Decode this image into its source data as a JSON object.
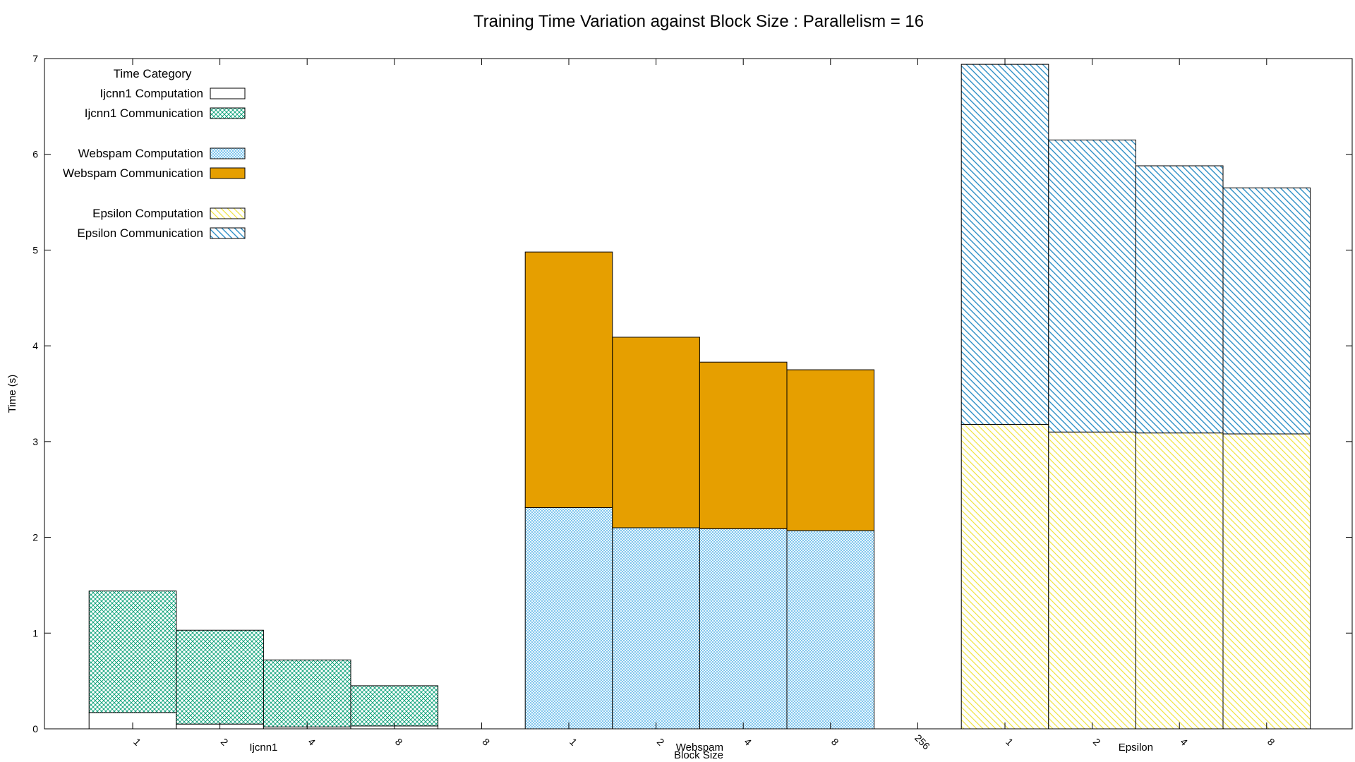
{
  "chart_data": {
    "type": "bar",
    "stacked": true,
    "title": "Training Time Variation against Block Size : Parallelism = 16",
    "xlabel": "Block Size",
    "ylabel": "Time (s)",
    "ylim": [
      0,
      7
    ],
    "yticks": [
      "0",
      "1",
      "2",
      "3",
      "4",
      "5",
      "6",
      "7"
    ],
    "grid": false,
    "legend": {
      "title": "Time Category",
      "placement": "top-left",
      "items": [
        {
          "label": "Ijcnn1 Computation",
          "pattern": "empty",
          "color": "#ffffff"
        },
        {
          "label": "Ijcnn1 Communication",
          "pattern": "crosshatch",
          "color": "#009e73"
        },
        {
          "label": "Webspam Computation",
          "pattern": "fine-crosshatch",
          "color": "#56b4e9"
        },
        {
          "label": "Webspam Communication",
          "pattern": "solid",
          "color": "#e69f00"
        },
        {
          "label": "Epsilon Computation",
          "pattern": "diagonal",
          "color": "#f0e442"
        },
        {
          "label": "Epsilon Communication",
          "pattern": "diagonal",
          "color": "#0072b2"
        }
      ]
    },
    "slot_tick_labels": [
      "1",
      "2",
      "4",
      "8",
      "8",
      "1",
      "2",
      "4",
      "8",
      "256",
      "1",
      "2",
      "4",
      "8"
    ],
    "groups": [
      {
        "name": "Ijcnn1",
        "categories": [
          "1",
          "2",
          "4",
          "8"
        ],
        "series": [
          {
            "name": "Ijcnn1 Computation",
            "values": [
              0.17,
              0.05,
              0.02,
              0.03
            ]
          },
          {
            "name": "Ijcnn1 Communication",
            "values": [
              1.27,
              0.98,
              0.7,
              0.42
            ]
          }
        ]
      },
      {
        "name": "Webspam",
        "categories": [
          "1",
          "2",
          "4",
          "8"
        ],
        "series": [
          {
            "name": "Webspam Computation",
            "values": [
              2.31,
              2.1,
              2.09,
              2.07
            ]
          },
          {
            "name": "Webspam Communication",
            "values": [
              2.67,
              1.99,
              1.74,
              1.68
            ]
          }
        ]
      },
      {
        "name": "Epsilon",
        "categories": [
          "1",
          "2",
          "4",
          "8"
        ],
        "series": [
          {
            "name": "Epsilon Computation",
            "values": [
              3.18,
              3.1,
              3.09,
              3.08
            ]
          },
          {
            "name": "Epsilon Communication",
            "values": [
              3.76,
              3.05,
              2.79,
              2.57
            ]
          }
        ]
      }
    ]
  }
}
